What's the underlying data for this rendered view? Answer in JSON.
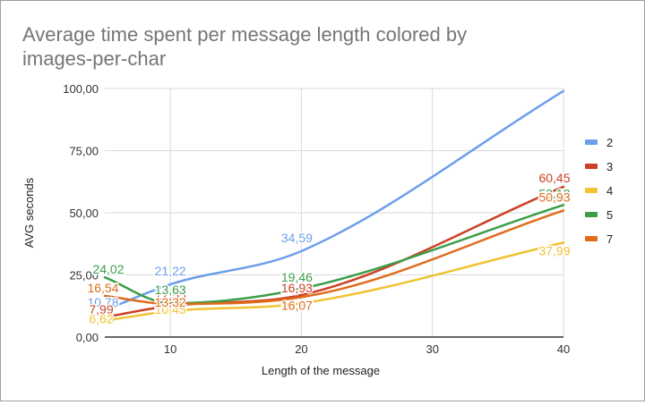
{
  "chart_data": {
    "type": "line",
    "title_lines": [
      "Average time spent per message length colored by",
      "images-per-char"
    ],
    "xlabel": "Length of the message",
    "ylabel": "AVG seconds",
    "xlim": [
      5,
      40
    ],
    "ylim": [
      0,
      100
    ],
    "x_ticks": [
      10,
      20,
      30,
      40
    ],
    "y_ticks": [
      0,
      25,
      50,
      75,
      100
    ],
    "y_tick_labels": [
      "0,00",
      "25,00",
      "50,00",
      "75,00",
      "100,00"
    ],
    "grid": true,
    "legend_position": "right",
    "series": [
      {
        "name": "2",
        "color": "#6d9eeb",
        "x": [
          5,
          10,
          20,
          40
        ],
        "y": [
          10.78,
          21.22,
          34.59,
          99.0
        ],
        "labels": [
          "10,78",
          "21,22",
          "34,59",
          ""
        ]
      },
      {
        "name": "3",
        "color": "#cc4125",
        "x": [
          5,
          10,
          20,
          40
        ],
        "y": [
          7.99,
          12.55,
          16.93,
          60.45
        ],
        "labels": [
          "7,99",
          "12,55",
          "16,93",
          "60,45"
        ]
      },
      {
        "name": "4",
        "color": "#f1c232",
        "x": [
          5,
          10,
          20,
          40
        ],
        "y": [
          6.62,
          10.45,
          13.57,
          37.99
        ],
        "labels": [
          "6,62",
          "10,45",
          "13,57",
          "37,99"
        ]
      },
      {
        "name": "5",
        "color": "#3d9e4a",
        "x": [
          5,
          10,
          20,
          40
        ],
        "y": [
          24.02,
          13.63,
          19.46,
          53.12
        ],
        "labels": [
          "24,02",
          "13,63",
          "19,46",
          "53,12"
        ]
      },
      {
        "name": "7",
        "color": "#e06c1a",
        "x": [
          5,
          10,
          20,
          40
        ],
        "y": [
          16.54,
          13.32,
          16.07,
          50.93
        ],
        "labels": [
          "16,54",
          "13,32",
          "16,07",
          "50,93"
        ]
      }
    ]
  }
}
